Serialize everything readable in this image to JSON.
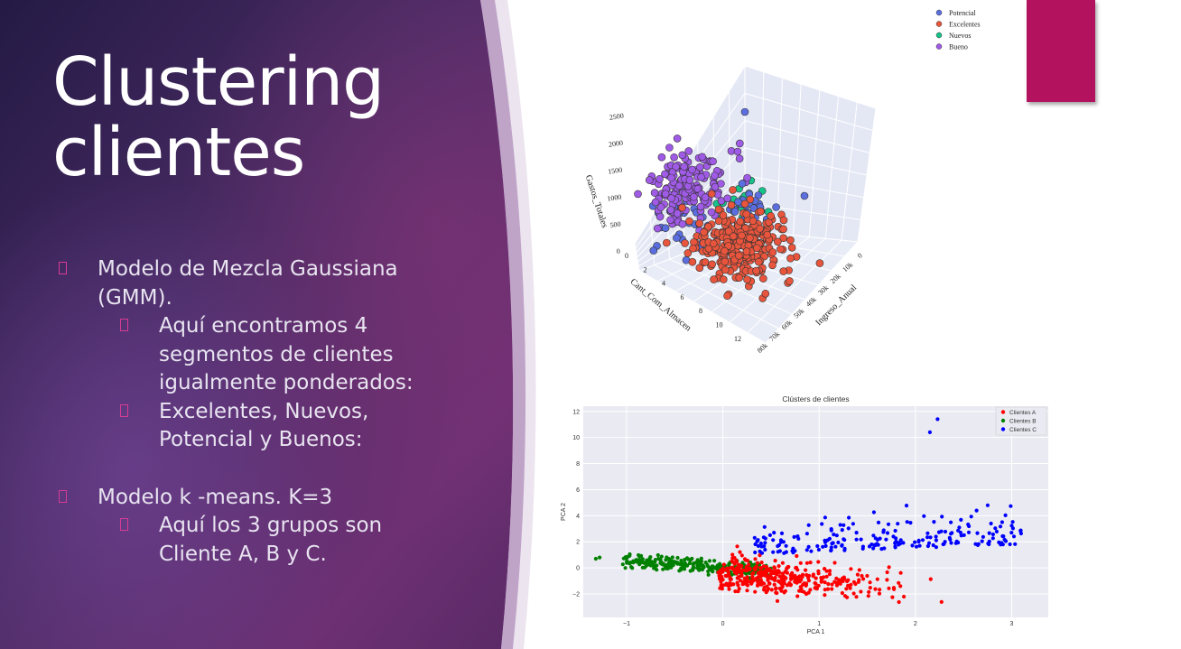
{
  "slide": {
    "title_lines": [
      "Clustering",
      "clientes"
    ],
    "bullets": [
      "Modelo de Mezcla Gaussiana (GMM).",
      "Aquí encontramos 4 segmentos de clientes igualmente ponderados:",
      "Excelentes, Nuevos, Potencial y Buenos:",
      "Modelo k -means. K=3",
      "Aquí los 3 grupos son Cliente A, B y C."
    ]
  },
  "colors": {
    "accent": "#b3125f",
    "bullet_marker": "#d63b96",
    "bg_dark": "#2a1e4a",
    "bg_mid": "#6a2f6e"
  },
  "chart_data": [
    {
      "type": "scatter",
      "subtype": "3d",
      "title": "",
      "xlabel": "Ingreso_Anual",
      "ylabel": "Cant_Com_Almacen",
      "zlabel": "Gastos_Totales",
      "x_ticks": [
        "0",
        "10k",
        "20k",
        "30k",
        "40k",
        "50k",
        "60k",
        "70k",
        "80k"
      ],
      "y_ticks": [
        "0",
        "2",
        "4",
        "6",
        "8",
        "10",
        "12"
      ],
      "z_ticks": [
        "0",
        "500",
        "1000",
        "1500",
        "2000",
        "2500"
      ],
      "legend": "top-right",
      "series": [
        {
          "name": "Potencial",
          "color": "#5b6ee0"
        },
        {
          "name": "Excelentes",
          "color": "#e8553c"
        },
        {
          "name": "Nuevos",
          "color": "#17c38a"
        },
        {
          "name": "Bueno",
          "color": "#a05be6"
        }
      ]
    },
    {
      "type": "scatter",
      "title": "Clústers de clientes",
      "xlabel": "PCA 1",
      "ylabel": "PCA 2",
      "xlim": [
        -1.45,
        3.38
      ],
      "ylim": [
        -3.8,
        12.4
      ],
      "x_ticks": [
        -1,
        0,
        1,
        2,
        3
      ],
      "y_ticks": [
        -2,
        0,
        2,
        4,
        6,
        8,
        10,
        12
      ],
      "grid": true,
      "legend": "top-right",
      "series": [
        {
          "name": "Clientes A",
          "color": "#ff0000"
        },
        {
          "name": "Clientes B",
          "color": "#008000"
        },
        {
          "name": "Clientes C",
          "color": "#0000ff"
        }
      ]
    }
  ]
}
